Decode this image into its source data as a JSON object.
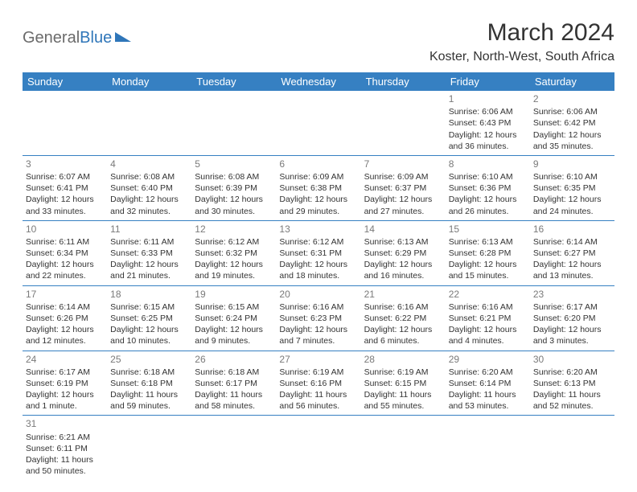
{
  "brand": {
    "part1": "General",
    "part2": "Blue"
  },
  "title": "March 2024",
  "location": "Koster, North-West, South Africa",
  "colors": {
    "header_bg": "#3680c2",
    "header_text": "#ffffff",
    "cell_border": "#3680c2",
    "daynum": "#7a7a7a",
    "body_text": "#333333",
    "background": "#ffffff"
  },
  "weekday_labels": [
    "Sunday",
    "Monday",
    "Tuesday",
    "Wednesday",
    "Thursday",
    "Friday",
    "Saturday"
  ],
  "weeks": [
    [
      null,
      null,
      null,
      null,
      null,
      {
        "day": "1",
        "sunrise": "Sunrise: 6:06 AM",
        "sunset": "Sunset: 6:43 PM",
        "daylight1": "Daylight: 12 hours",
        "daylight2": "and 36 minutes."
      },
      {
        "day": "2",
        "sunrise": "Sunrise: 6:06 AM",
        "sunset": "Sunset: 6:42 PM",
        "daylight1": "Daylight: 12 hours",
        "daylight2": "and 35 minutes."
      }
    ],
    [
      {
        "day": "3",
        "sunrise": "Sunrise: 6:07 AM",
        "sunset": "Sunset: 6:41 PM",
        "daylight1": "Daylight: 12 hours",
        "daylight2": "and 33 minutes."
      },
      {
        "day": "4",
        "sunrise": "Sunrise: 6:08 AM",
        "sunset": "Sunset: 6:40 PM",
        "daylight1": "Daylight: 12 hours",
        "daylight2": "and 32 minutes."
      },
      {
        "day": "5",
        "sunrise": "Sunrise: 6:08 AM",
        "sunset": "Sunset: 6:39 PM",
        "daylight1": "Daylight: 12 hours",
        "daylight2": "and 30 minutes."
      },
      {
        "day": "6",
        "sunrise": "Sunrise: 6:09 AM",
        "sunset": "Sunset: 6:38 PM",
        "daylight1": "Daylight: 12 hours",
        "daylight2": "and 29 minutes."
      },
      {
        "day": "7",
        "sunrise": "Sunrise: 6:09 AM",
        "sunset": "Sunset: 6:37 PM",
        "daylight1": "Daylight: 12 hours",
        "daylight2": "and 27 minutes."
      },
      {
        "day": "8",
        "sunrise": "Sunrise: 6:10 AM",
        "sunset": "Sunset: 6:36 PM",
        "daylight1": "Daylight: 12 hours",
        "daylight2": "and 26 minutes."
      },
      {
        "day": "9",
        "sunrise": "Sunrise: 6:10 AM",
        "sunset": "Sunset: 6:35 PM",
        "daylight1": "Daylight: 12 hours",
        "daylight2": "and 24 minutes."
      }
    ],
    [
      {
        "day": "10",
        "sunrise": "Sunrise: 6:11 AM",
        "sunset": "Sunset: 6:34 PM",
        "daylight1": "Daylight: 12 hours",
        "daylight2": "and 22 minutes."
      },
      {
        "day": "11",
        "sunrise": "Sunrise: 6:11 AM",
        "sunset": "Sunset: 6:33 PM",
        "daylight1": "Daylight: 12 hours",
        "daylight2": "and 21 minutes."
      },
      {
        "day": "12",
        "sunrise": "Sunrise: 6:12 AM",
        "sunset": "Sunset: 6:32 PM",
        "daylight1": "Daylight: 12 hours",
        "daylight2": "and 19 minutes."
      },
      {
        "day": "13",
        "sunrise": "Sunrise: 6:12 AM",
        "sunset": "Sunset: 6:31 PM",
        "daylight1": "Daylight: 12 hours",
        "daylight2": "and 18 minutes."
      },
      {
        "day": "14",
        "sunrise": "Sunrise: 6:13 AM",
        "sunset": "Sunset: 6:29 PM",
        "daylight1": "Daylight: 12 hours",
        "daylight2": "and 16 minutes."
      },
      {
        "day": "15",
        "sunrise": "Sunrise: 6:13 AM",
        "sunset": "Sunset: 6:28 PM",
        "daylight1": "Daylight: 12 hours",
        "daylight2": "and 15 minutes."
      },
      {
        "day": "16",
        "sunrise": "Sunrise: 6:14 AM",
        "sunset": "Sunset: 6:27 PM",
        "daylight1": "Daylight: 12 hours",
        "daylight2": "and 13 minutes."
      }
    ],
    [
      {
        "day": "17",
        "sunrise": "Sunrise: 6:14 AM",
        "sunset": "Sunset: 6:26 PM",
        "daylight1": "Daylight: 12 hours",
        "daylight2": "and 12 minutes."
      },
      {
        "day": "18",
        "sunrise": "Sunrise: 6:15 AM",
        "sunset": "Sunset: 6:25 PM",
        "daylight1": "Daylight: 12 hours",
        "daylight2": "and 10 minutes."
      },
      {
        "day": "19",
        "sunrise": "Sunrise: 6:15 AM",
        "sunset": "Sunset: 6:24 PM",
        "daylight1": "Daylight: 12 hours",
        "daylight2": "and 9 minutes."
      },
      {
        "day": "20",
        "sunrise": "Sunrise: 6:16 AM",
        "sunset": "Sunset: 6:23 PM",
        "daylight1": "Daylight: 12 hours",
        "daylight2": "and 7 minutes."
      },
      {
        "day": "21",
        "sunrise": "Sunrise: 6:16 AM",
        "sunset": "Sunset: 6:22 PM",
        "daylight1": "Daylight: 12 hours",
        "daylight2": "and 6 minutes."
      },
      {
        "day": "22",
        "sunrise": "Sunrise: 6:16 AM",
        "sunset": "Sunset: 6:21 PM",
        "daylight1": "Daylight: 12 hours",
        "daylight2": "and 4 minutes."
      },
      {
        "day": "23",
        "sunrise": "Sunrise: 6:17 AM",
        "sunset": "Sunset: 6:20 PM",
        "daylight1": "Daylight: 12 hours",
        "daylight2": "and 3 minutes."
      }
    ],
    [
      {
        "day": "24",
        "sunrise": "Sunrise: 6:17 AM",
        "sunset": "Sunset: 6:19 PM",
        "daylight1": "Daylight: 12 hours",
        "daylight2": "and 1 minute."
      },
      {
        "day": "25",
        "sunrise": "Sunrise: 6:18 AM",
        "sunset": "Sunset: 6:18 PM",
        "daylight1": "Daylight: 11 hours",
        "daylight2": "and 59 minutes."
      },
      {
        "day": "26",
        "sunrise": "Sunrise: 6:18 AM",
        "sunset": "Sunset: 6:17 PM",
        "daylight1": "Daylight: 11 hours",
        "daylight2": "and 58 minutes."
      },
      {
        "day": "27",
        "sunrise": "Sunrise: 6:19 AM",
        "sunset": "Sunset: 6:16 PM",
        "daylight1": "Daylight: 11 hours",
        "daylight2": "and 56 minutes."
      },
      {
        "day": "28",
        "sunrise": "Sunrise: 6:19 AM",
        "sunset": "Sunset: 6:15 PM",
        "daylight1": "Daylight: 11 hours",
        "daylight2": "and 55 minutes."
      },
      {
        "day": "29",
        "sunrise": "Sunrise: 6:20 AM",
        "sunset": "Sunset: 6:14 PM",
        "daylight1": "Daylight: 11 hours",
        "daylight2": "and 53 minutes."
      },
      {
        "day": "30",
        "sunrise": "Sunrise: 6:20 AM",
        "sunset": "Sunset: 6:13 PM",
        "daylight1": "Daylight: 11 hours",
        "daylight2": "and 52 minutes."
      }
    ],
    [
      {
        "day": "31",
        "sunrise": "Sunrise: 6:21 AM",
        "sunset": "Sunset: 6:11 PM",
        "daylight1": "Daylight: 11 hours",
        "daylight2": "and 50 minutes."
      },
      null,
      null,
      null,
      null,
      null,
      null
    ]
  ]
}
